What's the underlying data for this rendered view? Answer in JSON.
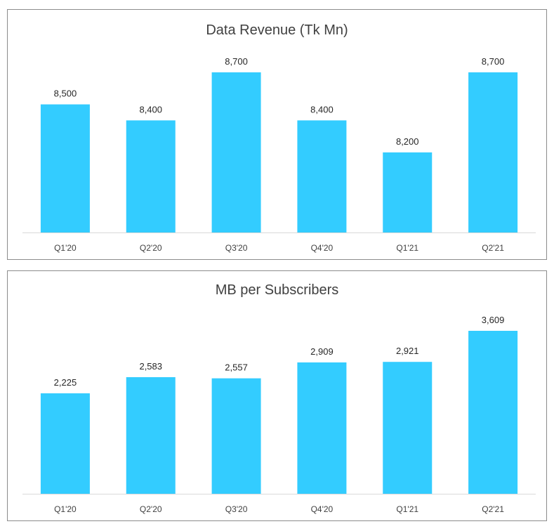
{
  "chart_data": [
    {
      "type": "bar",
      "title": "Data Revenue (Tk Mn)",
      "categories": [
        "Q1'20",
        "Q2'20",
        "Q3'20",
        "Q4'20",
        "Q1'21",
        "Q2'21"
      ],
      "values": [
        8500,
        8400,
        8700,
        8400,
        8200,
        8700
      ],
      "data_labels": [
        "8,500",
        "8,400",
        "8,700",
        "8,400",
        "8,200",
        "8,700"
      ],
      "ylim": [
        7700,
        8700
      ],
      "grid": false,
      "color": "#33CCFF"
    },
    {
      "type": "bar",
      "title": "MB per Subscribers",
      "categories": [
        "Q1'20",
        "Q2'20",
        "Q3'20",
        "Q4'20",
        "Q1'21",
        "Q2'21"
      ],
      "values": [
        2225,
        2583,
        2557,
        2909,
        2921,
        3609
      ],
      "data_labels": [
        "2,225",
        "2,583",
        "2,557",
        "2,909",
        "2,921",
        "3,609"
      ],
      "ylim": [
        0,
        3609
      ],
      "grid": false,
      "color": "#33CCFF"
    }
  ]
}
